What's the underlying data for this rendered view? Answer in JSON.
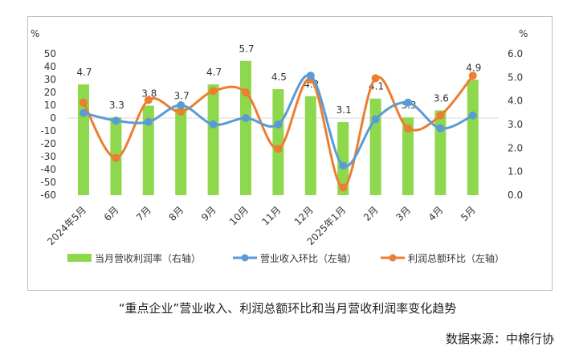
{
  "chart_data": {
    "type": "bar+line",
    "categories": [
      "2024年5月",
      "6月",
      "7月",
      "8月",
      "9月",
      "10月",
      "11月",
      "12月",
      "2025年1月",
      "2月",
      "3月",
      "4月",
      "5月"
    ],
    "left_axis": {
      "unit_label": "%",
      "min": -60,
      "max": 50,
      "step": 10
    },
    "right_axis": {
      "unit_label": "%",
      "min": 0.0,
      "max": 6.0,
      "step": 1.0
    },
    "series": [
      {
        "name": "当月营收利润率（右轴）",
        "type": "bar",
        "axis": "right",
        "color": "#8ed84d",
        "values": [
          4.7,
          3.3,
          3.8,
          3.7,
          4.7,
          5.7,
          4.5,
          4.2,
          3.1,
          4.1,
          3.3,
          3.6,
          4.9
        ]
      },
      {
        "name": "营业收入环比（左轴）",
        "type": "line",
        "axis": "left",
        "color": "#5b9bd5",
        "values": [
          4,
          -2,
          -3,
          10,
          -5,
          0,
          -5,
          33,
          -37,
          -1,
          12,
          -8,
          2
        ]
      },
      {
        "name": "利润总额环比（左轴）",
        "type": "line",
        "axis": "left",
        "color": "#ed7d31",
        "values": [
          12,
          -31,
          14,
          5,
          21,
          20,
          -24,
          30,
          -54,
          31,
          -8,
          2,
          33
        ]
      }
    ]
  },
  "caption": "“重点企业”营业收入、利润总额环比和当月营收利润率变化趋势",
  "source": "数据来源：中棉行协"
}
